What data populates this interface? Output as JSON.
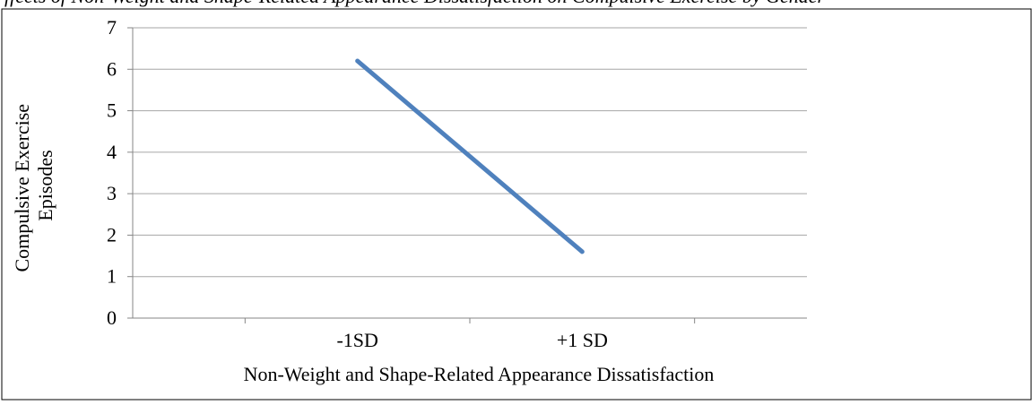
{
  "chart_data": {
    "type": "line",
    "categories": [
      "-1SD",
      "+1 SD"
    ],
    "series": [
      {
        "values": [
          6.2,
          1.6
        ],
        "color": "#4F81BD"
      }
    ],
    "title": "",
    "xlabel": "Non-Weight and Shape-Related Appearance Dissatisfaction",
    "ylabel": [
      "Compulsive Exercise",
      "Episodes"
    ],
    "ylim": [
      0,
      7
    ],
    "yticks": [
      0,
      1,
      2,
      3,
      4,
      5,
      6,
      7
    ],
    "grid": true,
    "gridline_color": "#A6A6A6",
    "axis_color": "#868686",
    "frame_color": "#000000",
    "legend": "none"
  },
  "caption_fragment": "ffects of Non-Weight and Shape-Related Appearance Dissatisfaction on Compulsive Exercise by Gender"
}
